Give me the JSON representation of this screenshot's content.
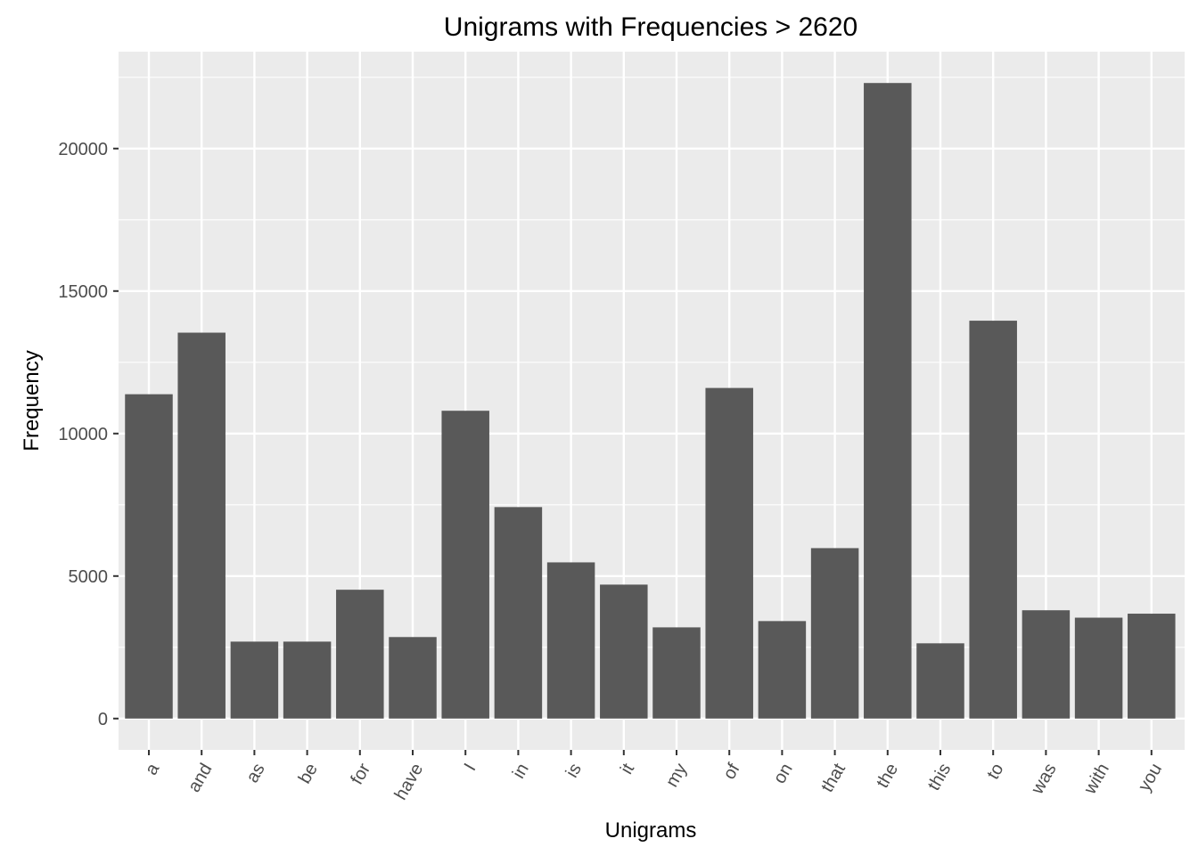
{
  "chart_data": {
    "type": "bar",
    "title": "Unigrams with Frequencies > 2620",
    "xlabel": "Unigrams",
    "ylabel": "Frequency",
    "categories": [
      "a",
      "and",
      "as",
      "be",
      "for",
      "have",
      "I",
      "in",
      "is",
      "it",
      "my",
      "of",
      "on",
      "that",
      "the",
      "this",
      "to",
      "was",
      "with",
      "you"
    ],
    "values": [
      11380,
      13540,
      2700,
      2700,
      4520,
      2860,
      10800,
      7420,
      5480,
      4700,
      3200,
      11600,
      3420,
      5980,
      22300,
      2640,
      13960,
      3800,
      3540,
      3680
    ],
    "y_ticks": [
      0,
      5000,
      10000,
      15000,
      20000
    ],
    "y_tick_labels": [
      "0",
      "5000",
      "10000",
      "15000",
      "20000"
    ],
    "ylim": [
      -1100,
      23400
    ],
    "grid": true,
    "legend": "none",
    "x_label_rotation": "-60 degrees",
    "colors": {
      "bar": "#595959",
      "panel_background": "#ebebeb",
      "grid": "#ffffff",
      "tick": "#333333"
    }
  }
}
